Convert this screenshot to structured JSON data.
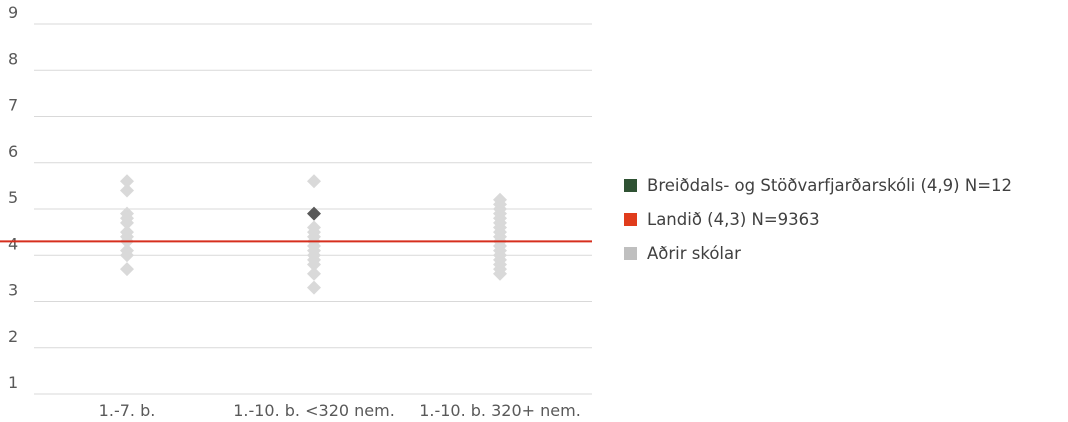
{
  "chart_data": {
    "type": "scatter",
    "ylim": [
      1,
      9
    ],
    "yticks": [
      1,
      2,
      3,
      4,
      5,
      6,
      7,
      8,
      9
    ],
    "categories": [
      "1.-7. b.",
      "1.-10. b. <320 nem.",
      "1.-10. b. 320+ nem."
    ],
    "reference_line": {
      "name": "Landið (4,3) N=9363",
      "value": 4.3,
      "color": "#d62f1e"
    },
    "series": [
      {
        "name": "Aðrir skólar",
        "color": "#d9d9d9",
        "points": [
          {
            "category": "1.-7. b.",
            "values": [
              5.6,
              5.4,
              4.9,
              4.8,
              4.7,
              4.5,
              4.4,
              4.3,
              4.1,
              4.0,
              3.7
            ]
          },
          {
            "category": "1.-10. b. <320 nem.",
            "values": [
              5.6,
              4.6,
              4.5,
              4.4,
              4.3,
              4.2,
              4.1,
              4.0,
              3.9,
              3.8,
              3.6,
              3.3
            ]
          },
          {
            "category": "1.-10. b. 320+ nem.",
            "values": [
              5.2,
              5.1,
              5.0,
              4.9,
              4.8,
              4.7,
              4.6,
              4.5,
              4.4,
              4.3,
              4.2,
              4.1,
              4.0,
              3.9,
              3.8,
              3.7,
              3.6
            ]
          }
        ]
      },
      {
        "name": "Breiðdals- og Stöðvarfjarðarskóli (4,9) N=12",
        "color": "#595959",
        "legend_color": "#2f5233",
        "points": [
          {
            "category": "1.-10. b. <320 nem.",
            "values": [
              4.9
            ]
          }
        ]
      }
    ],
    "legend": [
      {
        "label": "Breiðdals- og Stöðvarfjarðarskóli (4,9) N=12",
        "color": "#2f5233"
      },
      {
        "label": "Landið (4,3) N=9363",
        "color": "#e03c1c"
      },
      {
        "label": "Aðrir skólar",
        "color": "#bfbfbf"
      }
    ]
  }
}
